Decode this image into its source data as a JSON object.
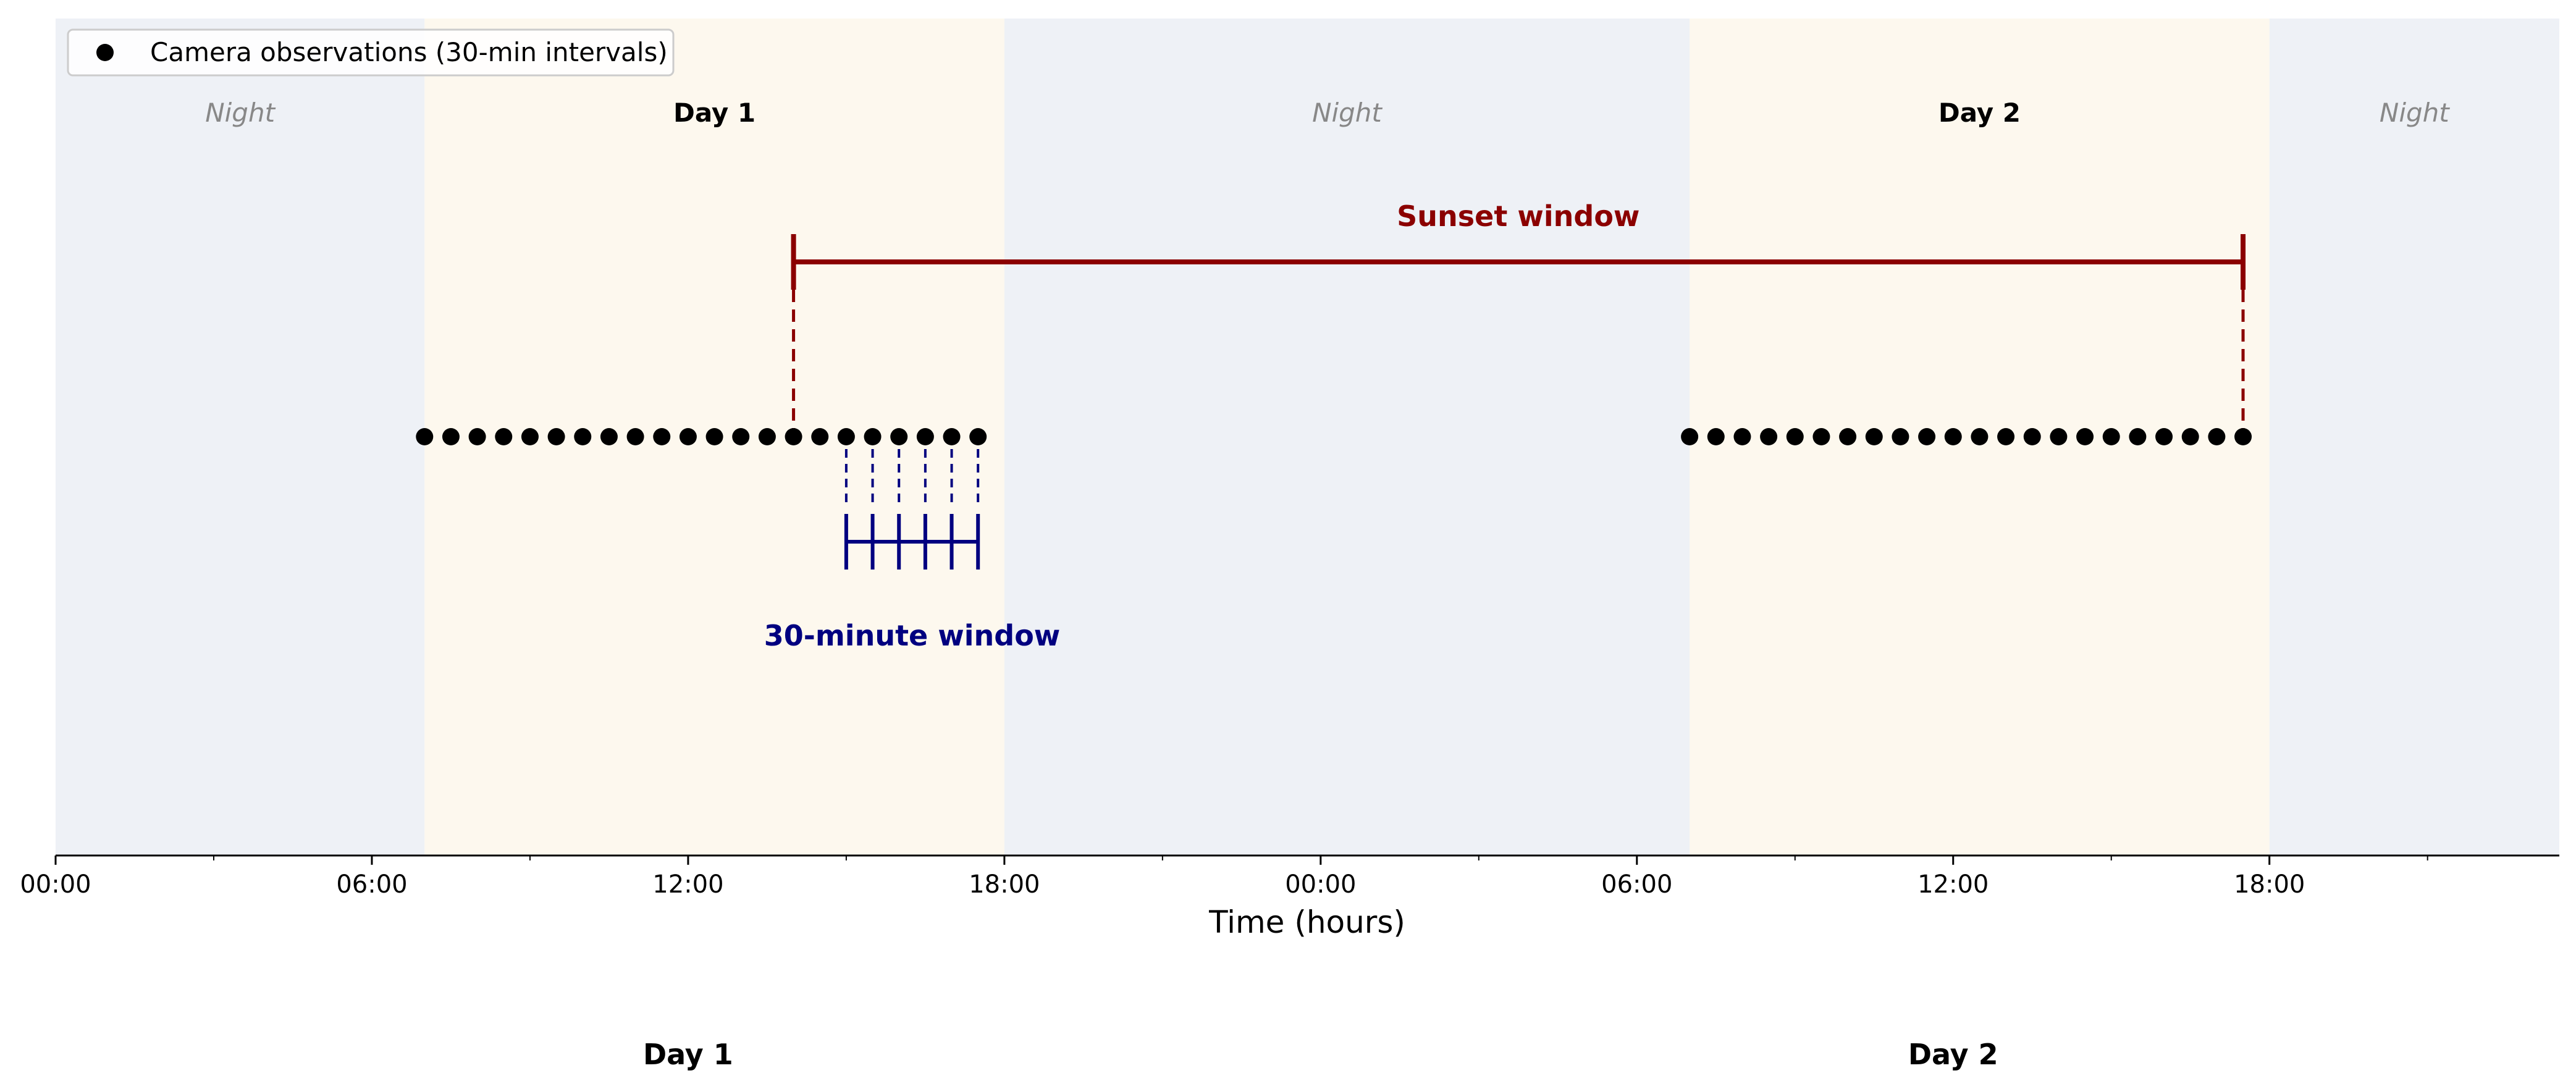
{
  "chart_data": {
    "type": "scatter",
    "xlabel": "Time (hours)",
    "x_unit": "hours",
    "xlim": [
      0,
      47.5
    ],
    "x_ticks": [
      {
        "value": 0,
        "label": "00:00"
      },
      {
        "value": 6,
        "label": "06:00"
      },
      {
        "value": 12,
        "label": "12:00"
      },
      {
        "value": 18,
        "label": "18:00"
      },
      {
        "value": 24,
        "label": "00:00"
      },
      {
        "value": 30,
        "label": "06:00"
      },
      {
        "value": 36,
        "label": "12:00"
      },
      {
        "value": 42,
        "label": "18:00"
      }
    ],
    "x_minor_ticks": [
      3,
      9,
      15,
      21,
      27,
      33,
      39,
      45
    ],
    "bands": [
      {
        "kind": "night",
        "start": 0,
        "end": 7,
        "label": "Night",
        "color": "#eef1f6"
      },
      {
        "kind": "day",
        "start": 7,
        "end": 18,
        "label": "Day 1",
        "color": "#fdf8ee"
      },
      {
        "kind": "night",
        "start": 18,
        "end": 31,
        "label": "Night",
        "color": "#eef1f6"
      },
      {
        "kind": "day",
        "start": 31,
        "end": 42,
        "label": "Day 2",
        "color": "#fdf8ee"
      },
      {
        "kind": "night",
        "start": 42,
        "end": 47.5,
        "label": "Night",
        "color": "#eef1f6"
      }
    ],
    "series": [
      {
        "name": "Camera observations (30-min intervals)",
        "color": "#000000",
        "x": [
          7.0,
          7.5,
          8.0,
          8.5,
          9.0,
          9.5,
          10.0,
          10.5,
          11.0,
          11.5,
          12.0,
          12.5,
          13.0,
          13.5,
          14.0,
          14.5,
          15.0,
          15.5,
          16.0,
          16.5,
          17.0,
          17.5,
          31.0,
          31.5,
          32.0,
          32.5,
          33.0,
          33.5,
          34.0,
          34.5,
          35.0,
          35.5,
          36.0,
          36.5,
          37.0,
          37.5,
          38.0,
          38.5,
          39.0,
          39.5,
          40.0,
          40.5,
          41.0,
          41.5
        ]
      }
    ],
    "annotations": {
      "sunset_window": {
        "label": "Sunset window",
        "start": 14.0,
        "end": 41.5,
        "color": "#8b0000"
      },
      "thirty_minute_window": {
        "label": "30-minute window",
        "ticks": [
          15.0,
          15.5,
          16.0,
          16.5,
          17.0,
          17.5
        ],
        "color": "#000080"
      }
    },
    "bottom_day_labels": [
      {
        "label": "Day 1",
        "x": 12
      },
      {
        "label": "Day 2",
        "x": 36
      }
    ],
    "legend": {
      "placement": "top-left"
    }
  }
}
